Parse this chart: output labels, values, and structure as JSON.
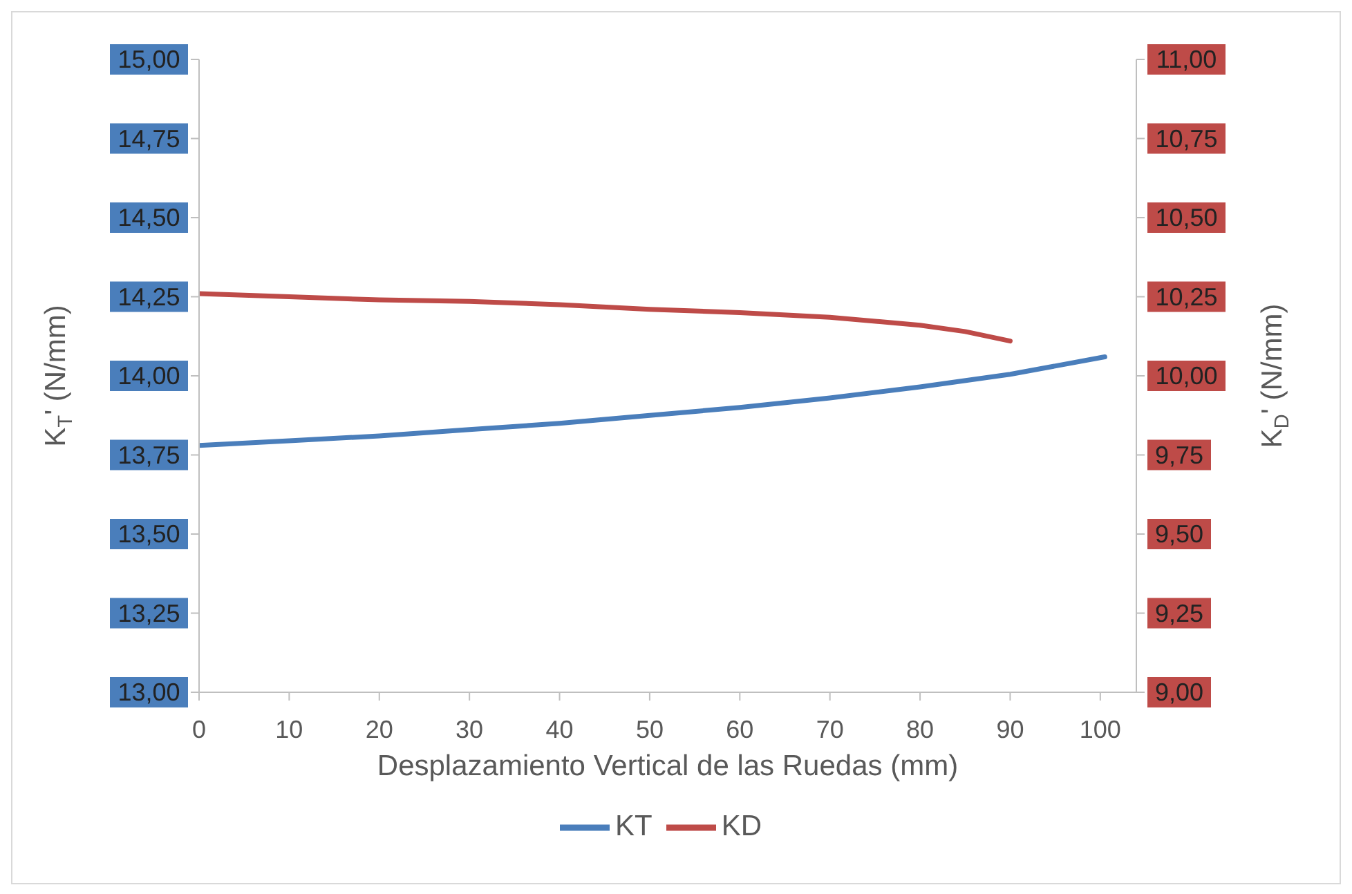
{
  "chart_data": {
    "type": "line",
    "xlabel": "Desplazamiento Vertical de las Ruedas (mm)",
    "ylabel": "K$_{T}$' (N/mm)",
    "y2label": "K$_{D}$' (N/mm)",
    "xlim": [
      0,
      104
    ],
    "xticks": [
      0,
      10,
      20,
      30,
      40,
      50,
      60,
      70,
      80,
      90,
      100
    ],
    "ylim": [
      13,
      15
    ],
    "yticks": [
      {
        "value": 13,
        "label": "13,00"
      },
      {
        "value": 13.25,
        "label": "13,25"
      },
      {
        "value": 13.5,
        "label": "13,50"
      },
      {
        "value": 13.75,
        "label": "13,75"
      },
      {
        "value": 14,
        "label": "14,00"
      },
      {
        "value": 14.25,
        "label": "14,25"
      },
      {
        "value": 14.5,
        "label": "14,50"
      },
      {
        "value": 14.75,
        "label": "14,75"
      },
      {
        "value": 15,
        "label": "15,00"
      }
    ],
    "y2lim": [
      9,
      11
    ],
    "y2ticks": [
      {
        "value": 9,
        "label": "9,00"
      },
      {
        "value": 9.25,
        "label": "9,25"
      },
      {
        "value": 9.5,
        "label": "9,50"
      },
      {
        "value": 9.75,
        "label": "9,75"
      },
      {
        "value": 10,
        "label": "10,00"
      },
      {
        "value": 10.25,
        "label": "10,25"
      },
      {
        "value": 10.5,
        "label": "10,50"
      },
      {
        "value": 10.75,
        "label": "10,75"
      },
      {
        "value": 11,
        "label": "11,00"
      }
    ],
    "legend": "bottom",
    "marker": "none",
    "line_style": "solid",
    "series": [
      {
        "name": "KT",
        "color": "#4a7ebb",
        "x": [
          0,
          10,
          20,
          30,
          40,
          50,
          60,
          70,
          80,
          90,
          100.5
        ],
        "values": [
          13.78,
          13.795,
          13.81,
          13.83,
          13.85,
          13.875,
          13.9,
          13.93,
          13.965,
          14.005,
          14.06
        ]
      },
      {
        "name": "KD",
        "color": "#be4b48",
        "axis": "y2",
        "x": [
          0,
          10,
          20,
          30,
          40,
          50,
          60,
          70,
          80,
          85,
          90
        ],
        "values": [
          10.26,
          10.25,
          10.24,
          10.235,
          10.225,
          10.21,
          10.2,
          10.185,
          10.16,
          10.14,
          10.11
        ]
      }
    ]
  }
}
